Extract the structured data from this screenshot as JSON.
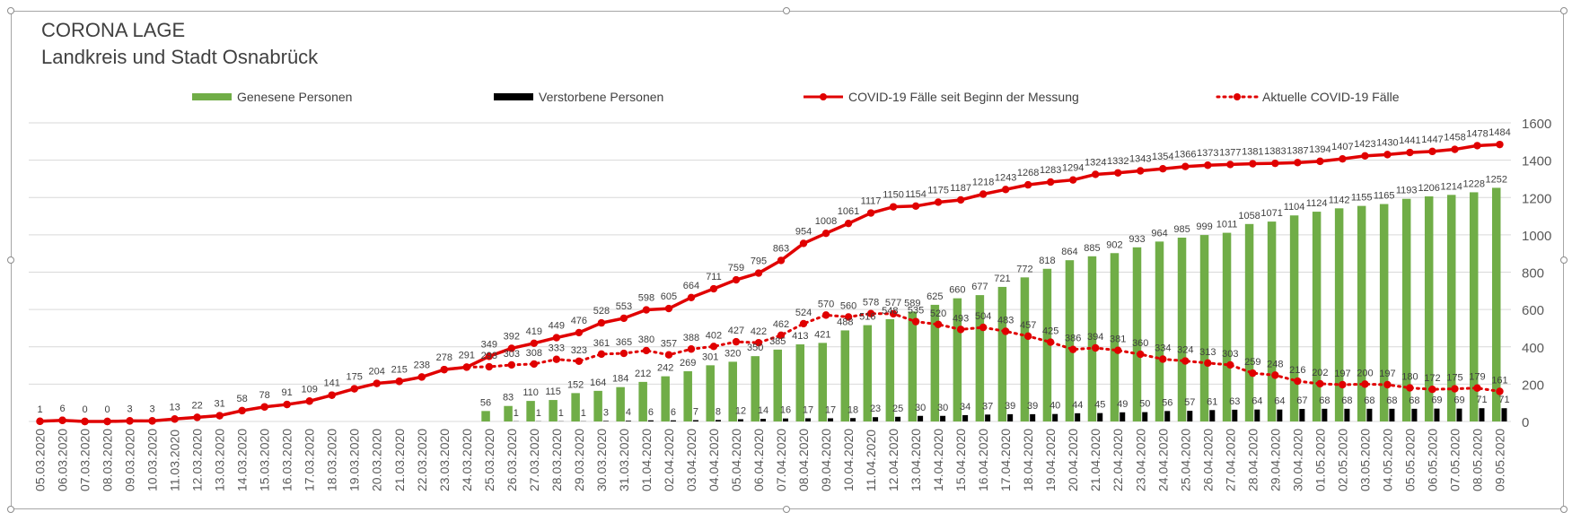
{
  "chart_data": {
    "type": "bar+line",
    "title": "CORONA LAGE",
    "subtitle": "Landkreis und Stadt Osnabrück",
    "legend_position": "top",
    "grid": true,
    "ylim": [
      0,
      1600
    ],
    "y_ticks": [
      0,
      200,
      400,
      600,
      800,
      1000,
      1200,
      1400,
      1600
    ],
    "categories": [
      "05.03.2020",
      "06.03.2020",
      "07.03.2020",
      "08.03.2020",
      "09.03.2020",
      "10.03.2020",
      "11.03.2020",
      "12.03.2020",
      "13.03.2020",
      "14.03.2020",
      "15.03.2020",
      "16.03.2020",
      "17.03.2020",
      "18.03.2020",
      "19.03.2020",
      "20.03.2020",
      "21.03.2020",
      "22.03.2020",
      "23.03.2020",
      "24.03.2020",
      "25.03.2020",
      "26.03.2020",
      "27.03.2020",
      "28.03.2020",
      "29.03.2020",
      "30.03.2020",
      "31.03.2020",
      "01.04.2020",
      "02.04.2020",
      "03.04.2020",
      "04.04.2020",
      "05.04.2020",
      "06.04.2020",
      "07.04.2020",
      "08.04.2020",
      "09.04.2020",
      "10.04.2020",
      "11.04.2020",
      "12.04.2020",
      "13.04.2020",
      "14.04.2020",
      "15.04.2020",
      "16.04.2020",
      "17.04.2020",
      "18.04.2020",
      "19.04.2020",
      "20.04.2020",
      "21.04.2020",
      "22.04.2020",
      "23.04.2020",
      "24.04.2020",
      "25.04.2020",
      "26.04.2020",
      "27.04.2020",
      "28.04.2020",
      "29.04.2020",
      "30.04.2020",
      "01.05.2020",
      "02.05.2020",
      "03.05.2020",
      "04.05.2020",
      "05.05.2020",
      "06.05.2020",
      "07.05.2020",
      "08.05.2020",
      "09.05.2020"
    ],
    "series": [
      {
        "name": "Genesene Personen",
        "type": "bar",
        "color": "#70ad47",
        "values": [
          null,
          null,
          null,
          null,
          null,
          null,
          null,
          null,
          null,
          null,
          null,
          null,
          null,
          null,
          null,
          null,
          null,
          null,
          null,
          null,
          56,
          83,
          110,
          115,
          152,
          164,
          184,
          212,
          242,
          269,
          301,
          320,
          350,
          385,
          413,
          421,
          488,
          516,
          548,
          589,
          625,
          660,
          677,
          721,
          772,
          818,
          864,
          885,
          902,
          933,
          964,
          985,
          999,
          1011,
          1058,
          1071,
          1104,
          1124,
          1142,
          1155,
          1165,
          1193,
          1206,
          1214,
          1228,
          1252
        ]
      },
      {
        "name": "Verstorbene Personen",
        "type": "bar",
        "color": "#000000",
        "values": [
          null,
          null,
          null,
          null,
          null,
          null,
          null,
          null,
          null,
          null,
          null,
          null,
          null,
          null,
          null,
          null,
          null,
          null,
          null,
          null,
          null,
          1,
          1,
          1,
          1,
          3,
          4,
          6,
          6,
          7,
          8,
          12,
          14,
          16,
          17,
          17,
          18,
          23,
          25,
          30,
          30,
          34,
          37,
          39,
          39,
          40,
          44,
          45,
          49,
          50,
          56,
          57,
          61,
          63,
          64,
          64,
          67,
          68,
          68,
          68,
          68,
          68,
          69,
          69,
          71,
          71
        ]
      },
      {
        "name": "COVID-19 Fälle seit Beginn der Messung",
        "type": "line",
        "color": "#e00000",
        "values": [
          1,
          6,
          0,
          0,
          3,
          3,
          13,
          22,
          31,
          58,
          78,
          91,
          109,
          141,
          175,
          204,
          215,
          238,
          278,
          291,
          349,
          392,
          419,
          449,
          476,
          528,
          553,
          598,
          605,
          664,
          711,
          759,
          795,
          863,
          954,
          1008,
          1061,
          1117,
          1150,
          1154,
          1175,
          1187,
          1218,
          1243,
          1268,
          1283,
          1294,
          1324,
          1332,
          1343,
          1354,
          1366,
          1373,
          1377,
          1381,
          1383,
          1387,
          1394,
          1407,
          1423,
          1430,
          1441,
          1447,
          1458,
          1478,
          1484
        ]
      },
      {
        "name": "Aktuelle COVID-19 Fälle",
        "type": "line-dotted",
        "color": "#e00000",
        "values": [
          1,
          6,
          0,
          0,
          3,
          3,
          13,
          22,
          31,
          58,
          78,
          91,
          109,
          141,
          175,
          204,
          215,
          238,
          278,
          291,
          293,
          303,
          308,
          333,
          323,
          361,
          365,
          380,
          357,
          388,
          402,
          427,
          422,
          462,
          524,
          570,
          560,
          578,
          577,
          535,
          520,
          493,
          504,
          483,
          457,
          425,
          386,
          394,
          381,
          360,
          334,
          324,
          313,
          303,
          259,
          248,
          216,
          202,
          197,
          200,
          197,
          180,
          172,
          175,
          179,
          161
        ]
      }
    ]
  }
}
